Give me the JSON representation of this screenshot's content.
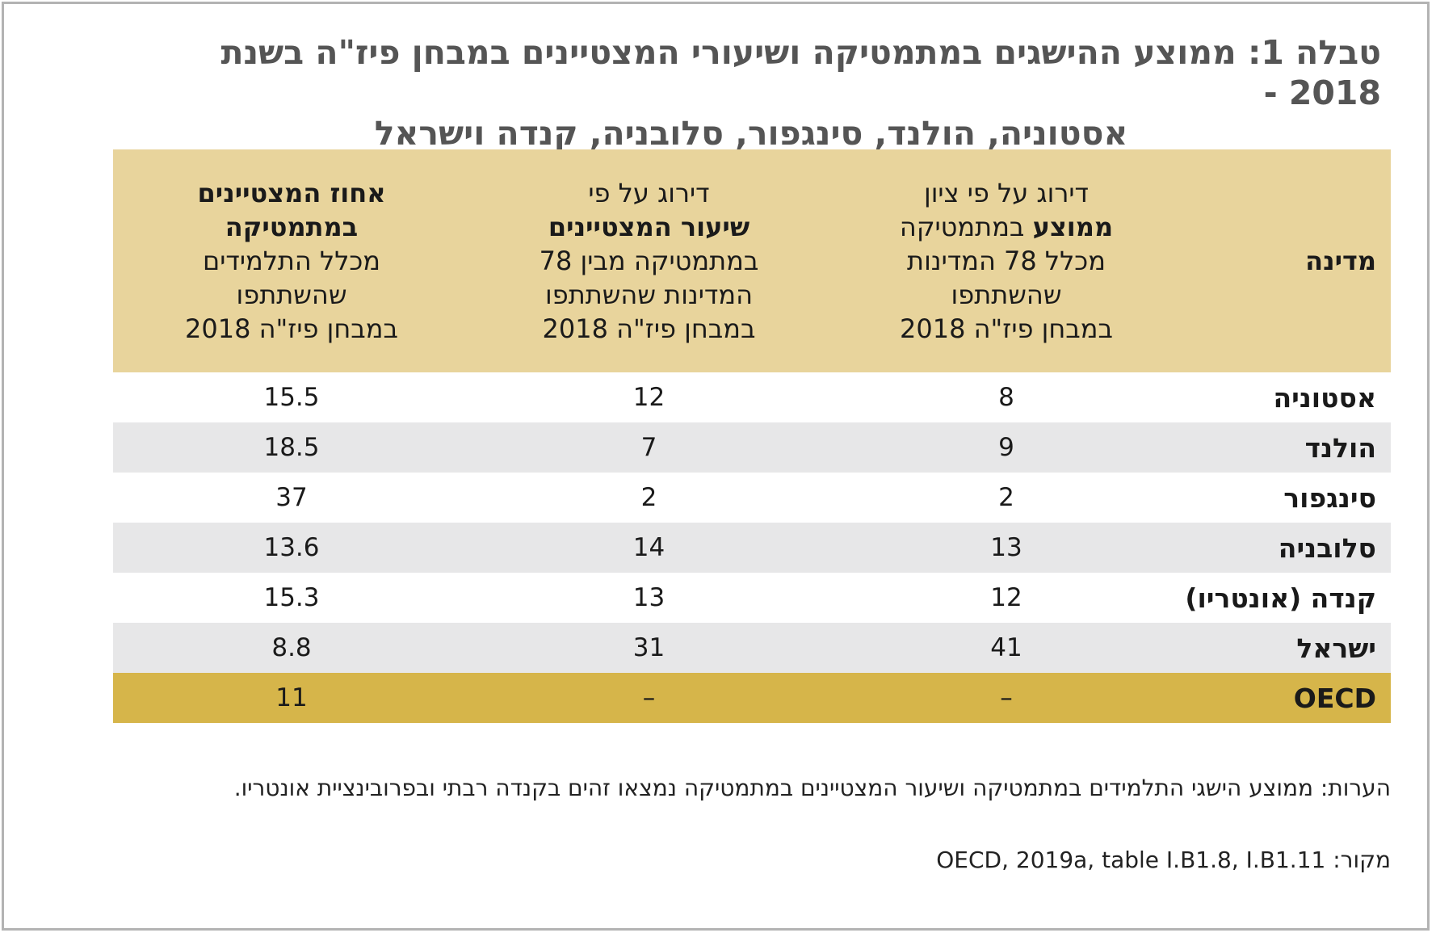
{
  "title": {
    "line1": "טבלה 1: ממוצע ההישגים במתמטיקה ושיעורי המצטיינים במבחן פיז\"ה בשנת 2018 -",
    "line2": "אסטוניה, הולנד, סינגפור, סלובניה, קנדה וישראל"
  },
  "table": {
    "headers": {
      "country": "מדינה",
      "avg_a": "דירוג על פי ציון",
      "avg_b": "ממוצע",
      "avg_c": " במתמטיקה",
      "avg_d": "מכלל 78 המדינות",
      "avg_e": "שהשתתפו",
      "avg_f": "במבחן פיז\"ה 2018",
      "rate_a": "דירוג על פי",
      "rate_b": "שיעור המצטיינים",
      "rate_c": "במתמטיקה מבין 78",
      "rate_d": "המדינות שהשתתפו",
      "rate_e": "במבחן פיז\"ה 2018",
      "pct_a": "אחוז המצטיינים",
      "pct_b": "במתמטיקה",
      "pct_c": "מכלל התלמידים",
      "pct_d": "שהשתתפו",
      "pct_e": "במבחן פיז\"ה 2018"
    },
    "rows": [
      {
        "country": "אסטוניה",
        "avg_rank": "8",
        "rate_rank": "12",
        "pct": "15.5"
      },
      {
        "country": "הולנד",
        "avg_rank": "9",
        "rate_rank": "7",
        "pct": "18.5"
      },
      {
        "country": "סינגפור",
        "avg_rank": "2",
        "rate_rank": "2",
        "pct": "37"
      },
      {
        "country": "סלובניה",
        "avg_rank": "13",
        "rate_rank": "14",
        "pct": "13.6"
      },
      {
        "country": "קנדה (אונטריו)",
        "avg_rank": "12",
        "rate_rank": "13",
        "pct": "15.3"
      },
      {
        "country": "ישראל",
        "avg_rank": "41",
        "rate_rank": "31",
        "pct": "8.8"
      },
      {
        "country": "OECD",
        "avg_rank": "–",
        "rate_rank": "–",
        "pct": "11"
      }
    ]
  },
  "notes": "הערות: ממוצע הישגי התלמידים במתמטיקה ושיעור המצטיינים במתמטיקה נמצאו זהים בקנדה רבתי ובפרובינציית אונטריו.",
  "source": {
    "label": "מקור: ",
    "reference": "OECD, 2019a, table I.B1.8, I.B1.11"
  },
  "colors": {
    "header_bg": "#e8d49c",
    "alt_row_bg": "#e7e7e8",
    "oecd_row_bg": "#d6b54a",
    "title_color": "#555555"
  }
}
